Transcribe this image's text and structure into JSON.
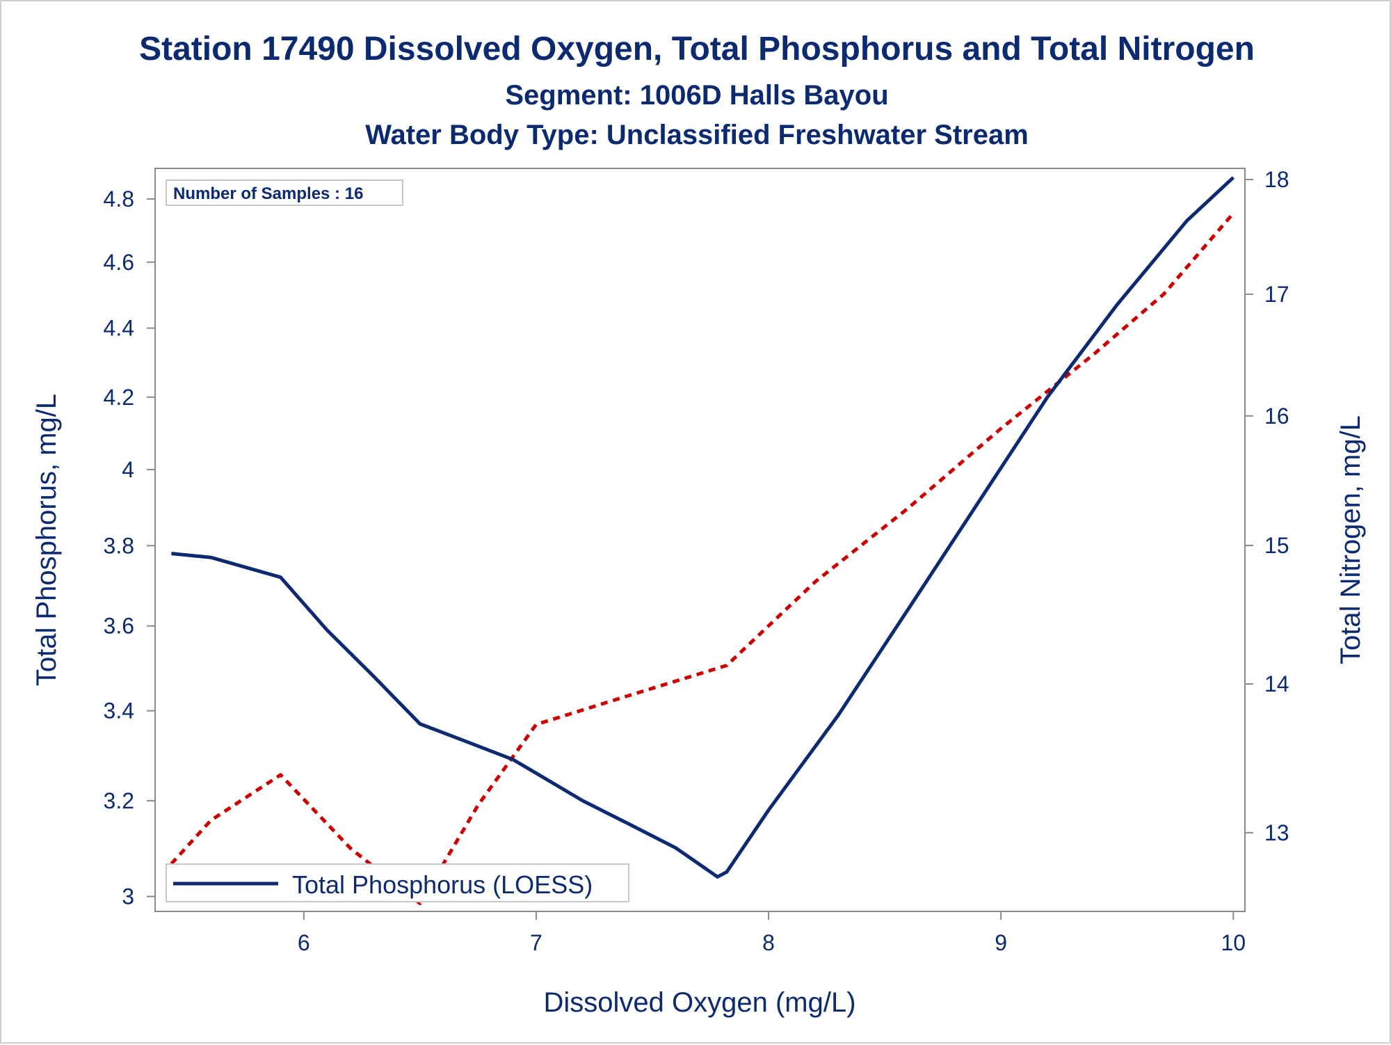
{
  "chart_data": {
    "type": "line",
    "title": "Station 17490  Dissolved Oxygen, Total Phosphorus and Total Nitrogen",
    "subtitle": "Segment: 1006D  Halls Bayou",
    "subtitle2": "Water Body Type: Unclassified Freshwater Stream",
    "annotation": "Number of Samples : 16",
    "xlabel": "Dissolved Oxygen (mg/L)",
    "ylabel_left": "Total Phosphorus, mg/L",
    "ylabel_right": "Total Nitrogen, mg/L",
    "x_ticks": [
      "6",
      "7",
      "8",
      "9",
      "10"
    ],
    "y_left_ticks": [
      "3",
      "3.2",
      "3.4",
      "3.6",
      "3.8",
      "4",
      "4.2",
      "4.4",
      "4.6",
      "4.8"
    ],
    "y_right_ticks": [
      "13",
      "14",
      "15",
      "16",
      "17",
      "18"
    ],
    "y_left_scale": "log",
    "y_right_scale": "log",
    "xlim": [
      5.36,
      10.05
    ],
    "ylim_left": [
      2.97,
      4.9
    ],
    "ylim_right": [
      12.5,
      18.1
    ],
    "grid": false,
    "legend_position": "bottom-left",
    "series": [
      {
        "name": "Total Phosphorus (LOESS)",
        "axis": "left",
        "style": "solid",
        "color": "#0b2a6f",
        "x": [
          5.43,
          5.6,
          5.9,
          6.1,
          6.3,
          6.5,
          6.7,
          6.9,
          7.0,
          7.2,
          7.4,
          7.6,
          7.78,
          7.82,
          8.0,
          8.3,
          8.6,
          8.9,
          9.2,
          9.5,
          9.8,
          10.0
        ],
        "y": [
          3.78,
          3.77,
          3.72,
          3.59,
          3.48,
          3.37,
          3.33,
          3.29,
          3.26,
          3.2,
          3.15,
          3.1,
          3.04,
          3.05,
          3.18,
          3.39,
          3.64,
          3.91,
          4.2,
          4.47,
          4.73,
          4.87
        ]
      },
      {
        "name": "Total Nitrogen",
        "axis": "right",
        "style": "dashed",
        "color": "#cc0000",
        "x": [
          5.43,
          5.6,
          5.9,
          6.2,
          6.5,
          6.75,
          7.0,
          7.4,
          7.82,
          8.2,
          8.6,
          9.0,
          9.4,
          9.7,
          10.0
        ],
        "y": [
          12.8,
          13.08,
          13.38,
          12.9,
          12.55,
          13.18,
          13.72,
          13.92,
          14.13,
          14.73,
          15.28,
          15.9,
          16.5,
          17.0,
          17.7
        ]
      }
    ]
  }
}
